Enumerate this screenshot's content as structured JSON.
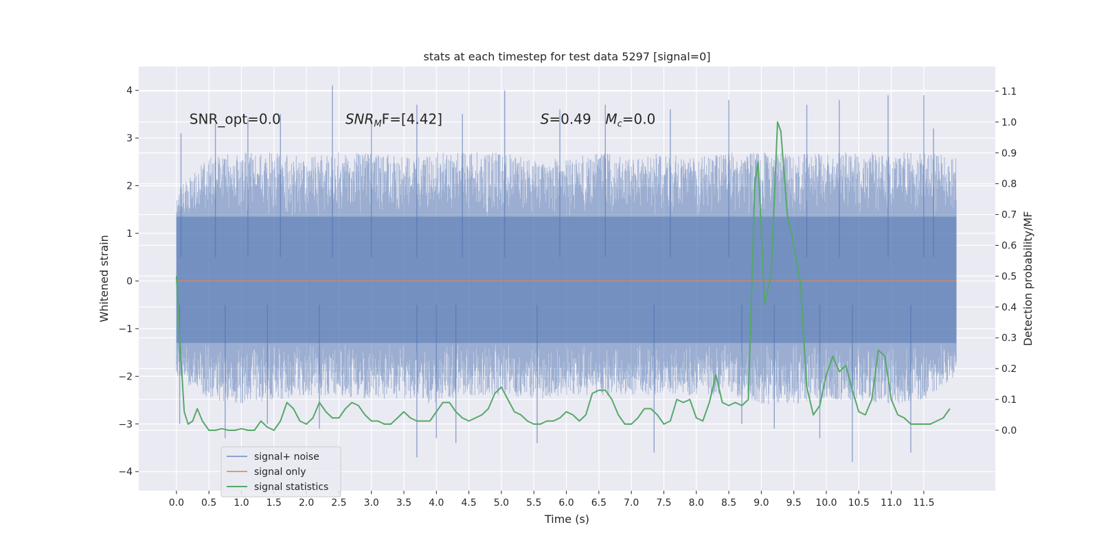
{
  "chart_data": {
    "type": "line",
    "title": "stats at each timestep for test data 5297 [signal=0]",
    "xlabel": "Time (s)",
    "ylabel_left": "Whitened strain",
    "ylabel_right": "Detection probability/MF",
    "xlim": [
      -0.58,
      12.6
    ],
    "ylim_left": [
      -4.4,
      4.5
    ],
    "ylim_right": [
      -0.196,
      1.18
    ],
    "x_ticks": [
      0.0,
      0.5,
      1.0,
      1.5,
      2.0,
      2.5,
      3.0,
      3.5,
      4.0,
      4.5,
      5.0,
      5.5,
      6.0,
      6.5,
      7.0,
      7.5,
      8.0,
      8.5,
      9.0,
      9.5,
      10.0,
      10.5,
      11.0,
      11.5
    ],
    "x_tick_labels": [
      "0.0",
      "0.5",
      "1.0",
      "1.5",
      "2.0",
      "2.5",
      "3.0",
      "3.5",
      "4.0",
      "4.5",
      "5.0",
      "5.5",
      "6.0",
      "6.5",
      "7.0",
      "7.5",
      "8.0",
      "8.5",
      "9.0",
      "9.5",
      "10.0",
      "10.5",
      "11.0",
      "11.5"
    ],
    "y_left_ticks": [
      -4,
      -3,
      -2,
      -1,
      0,
      1,
      2,
      3,
      4
    ],
    "y_left_tick_labels": [
      "−4",
      "−3",
      "−2",
      "−1",
      "0",
      "1",
      "2",
      "3",
      "4"
    ],
    "y_right_ticks": [
      0.0,
      0.1,
      0.2,
      0.3,
      0.4,
      0.5,
      0.6,
      0.7,
      0.8,
      0.9,
      1.0,
      1.1
    ],
    "y_right_tick_labels": [
      "0.0",
      "0.1",
      "0.2",
      "0.3",
      "0.4",
      "0.5",
      "0.6",
      "0.7",
      "0.8",
      "0.9",
      "1.0",
      "1.1"
    ],
    "grid": true,
    "legend_position": "lower-left",
    "annotations": [
      {
        "text": "SNR_opt=0.0",
        "x": 0.2,
        "y": 3.3
      },
      {
        "text": "SNR",
        "sub": "M",
        "rest": "F=[4.42]",
        "italic": true,
        "x": 2.6,
        "y": 3.3
      },
      {
        "text": "S",
        "rest": "=0.49",
        "italic": true,
        "x": 5.6,
        "y": 3.3
      },
      {
        "text": "M",
        "sub": "c",
        "rest": "=0.0",
        "italic": true,
        "x": 6.6,
        "y": 3.3
      }
    ],
    "series": [
      {
        "name": "signal+ noise",
        "axis": "left",
        "color": "#4c72b0",
        "opacity": 0.5,
        "kind": "dense-noise",
        "x_range": [
          0.0,
          12.0
        ],
        "core_band": [
          -1.3,
          1.35
        ],
        "envelope_max": [
          1.9,
          2.6,
          2.7,
          2.7,
          2.6,
          2.7,
          2.7,
          2.6,
          2.7,
          2.7,
          2.7,
          2.6,
          2.6,
          2.7,
          2.6,
          2.7,
          2.6,
          2.7,
          2.7,
          2.7,
          2.7,
          2.7,
          2.7,
          2.7,
          2.6
        ],
        "envelope_min": [
          -2.0,
          -2.5,
          -2.6,
          -2.5,
          -2.4,
          -2.4,
          -2.5,
          -2.5,
          -2.6,
          -2.4,
          -2.4,
          -2.5,
          -2.4,
          -2.4,
          -2.4,
          -2.4,
          -2.4,
          -2.4,
          -2.6,
          -2.6,
          -2.5,
          -2.5,
          -2.6,
          -2.5,
          -2.0
        ],
        "peaks": [
          {
            "x": 0.07,
            "y": 3.1
          },
          {
            "x": 0.6,
            "y": 3.3
          },
          {
            "x": 1.1,
            "y": 3.4
          },
          {
            "x": 1.6,
            "y": 3.5
          },
          {
            "x": 2.4,
            "y": 4.1
          },
          {
            "x": 3.0,
            "y": 3.4
          },
          {
            "x": 3.7,
            "y": 3.7
          },
          {
            "x": 4.4,
            "y": 3.5
          },
          {
            "x": 5.05,
            "y": 4.0
          },
          {
            "x": 5.9,
            "y": 3.6
          },
          {
            "x": 6.6,
            "y": 3.7
          },
          {
            "x": 7.6,
            "y": 3.6
          },
          {
            "x": 8.5,
            "y": 3.8
          },
          {
            "x": 9.7,
            "y": 3.7
          },
          {
            "x": 10.2,
            "y": 3.8
          },
          {
            "x": 10.95,
            "y": 3.9
          },
          {
            "x": 11.5,
            "y": 3.9
          },
          {
            "x": 11.65,
            "y": 3.2
          }
        ],
        "troughs": [
          {
            "x": 0.05,
            "y": -3.0
          },
          {
            "x": 0.75,
            "y": -3.3
          },
          {
            "x": 1.4,
            "y": -3.0
          },
          {
            "x": 2.2,
            "y": -3.1
          },
          {
            "x": 3.7,
            "y": -3.7
          },
          {
            "x": 4.0,
            "y": -3.3
          },
          {
            "x": 4.3,
            "y": -3.4
          },
          {
            "x": 5.55,
            "y": -3.4
          },
          {
            "x": 7.35,
            "y": -3.6
          },
          {
            "x": 8.7,
            "y": -3.0
          },
          {
            "x": 9.2,
            "y": -3.1
          },
          {
            "x": 9.9,
            "y": -3.3
          },
          {
            "x": 10.4,
            "y": -3.8
          },
          {
            "x": 11.3,
            "y": -3.6
          }
        ]
      },
      {
        "name": "signal only",
        "axis": "left",
        "color": "#dd8452",
        "x": [
          0.0,
          12.0
        ],
        "y": [
          0.0,
          0.0
        ]
      },
      {
        "name": "signal statistics",
        "axis": "right",
        "color": "#55a868",
        "x": [
          0.0,
          0.05,
          0.12,
          0.18,
          0.25,
          0.32,
          0.4,
          0.5,
          0.6,
          0.7,
          0.8,
          0.9,
          1.0,
          1.1,
          1.2,
          1.3,
          1.4,
          1.5,
          1.6,
          1.7,
          1.8,
          1.9,
          2.0,
          2.1,
          2.2,
          2.3,
          2.4,
          2.5,
          2.6,
          2.7,
          2.8,
          2.9,
          3.0,
          3.1,
          3.2,
          3.3,
          3.4,
          3.5,
          3.6,
          3.7,
          3.8,
          3.9,
          4.0,
          4.1,
          4.2,
          4.3,
          4.4,
          4.5,
          4.6,
          4.7,
          4.8,
          4.9,
          5.0,
          5.1,
          5.2,
          5.3,
          5.4,
          5.5,
          5.6,
          5.7,
          5.8,
          5.9,
          6.0,
          6.1,
          6.2,
          6.3,
          6.4,
          6.5,
          6.6,
          6.7,
          6.8,
          6.9,
          7.0,
          7.1,
          7.2,
          7.3,
          7.4,
          7.5,
          7.6,
          7.7,
          7.8,
          7.9,
          8.0,
          8.1,
          8.2,
          8.3,
          8.4,
          8.5,
          8.6,
          8.7,
          8.8,
          8.9,
          8.95,
          9.05,
          9.15,
          9.25,
          9.3,
          9.4,
          9.5,
          9.6,
          9.7,
          9.8,
          9.9,
          10.0,
          10.1,
          10.2,
          10.3,
          10.4,
          10.5,
          10.6,
          10.7,
          10.8,
          10.9,
          11.0,
          11.1,
          11.2,
          11.3,
          11.4,
          11.5,
          11.6,
          11.7,
          11.8,
          11.9
        ],
        "y": [
          0.5,
          0.3,
          0.06,
          0.02,
          0.03,
          0.07,
          0.03,
          0.0,
          0.0,
          0.005,
          0.0,
          0.0,
          0.005,
          0.0,
          0.0,
          0.03,
          0.01,
          0.0,
          0.03,
          0.09,
          0.07,
          0.03,
          0.02,
          0.04,
          0.09,
          0.06,
          0.04,
          0.04,
          0.07,
          0.09,
          0.08,
          0.05,
          0.03,
          0.03,
          0.02,
          0.02,
          0.04,
          0.06,
          0.04,
          0.03,
          0.03,
          0.03,
          0.06,
          0.09,
          0.09,
          0.06,
          0.04,
          0.03,
          0.04,
          0.05,
          0.07,
          0.12,
          0.14,
          0.1,
          0.06,
          0.05,
          0.03,
          0.02,
          0.02,
          0.03,
          0.03,
          0.04,
          0.06,
          0.05,
          0.03,
          0.05,
          0.12,
          0.13,
          0.13,
          0.1,
          0.05,
          0.02,
          0.02,
          0.04,
          0.07,
          0.07,
          0.05,
          0.02,
          0.03,
          0.1,
          0.09,
          0.1,
          0.04,
          0.03,
          0.09,
          0.18,
          0.09,
          0.08,
          0.09,
          0.08,
          0.1,
          0.8,
          0.87,
          0.41,
          0.5,
          1.0,
          0.97,
          0.7,
          0.6,
          0.48,
          0.14,
          0.05,
          0.08,
          0.18,
          0.24,
          0.19,
          0.21,
          0.13,
          0.06,
          0.05,
          0.1,
          0.26,
          0.24,
          0.1,
          0.05,
          0.04,
          0.02,
          0.02,
          0.02,
          0.02,
          0.03,
          0.04,
          0.07
        ]
      }
    ]
  }
}
